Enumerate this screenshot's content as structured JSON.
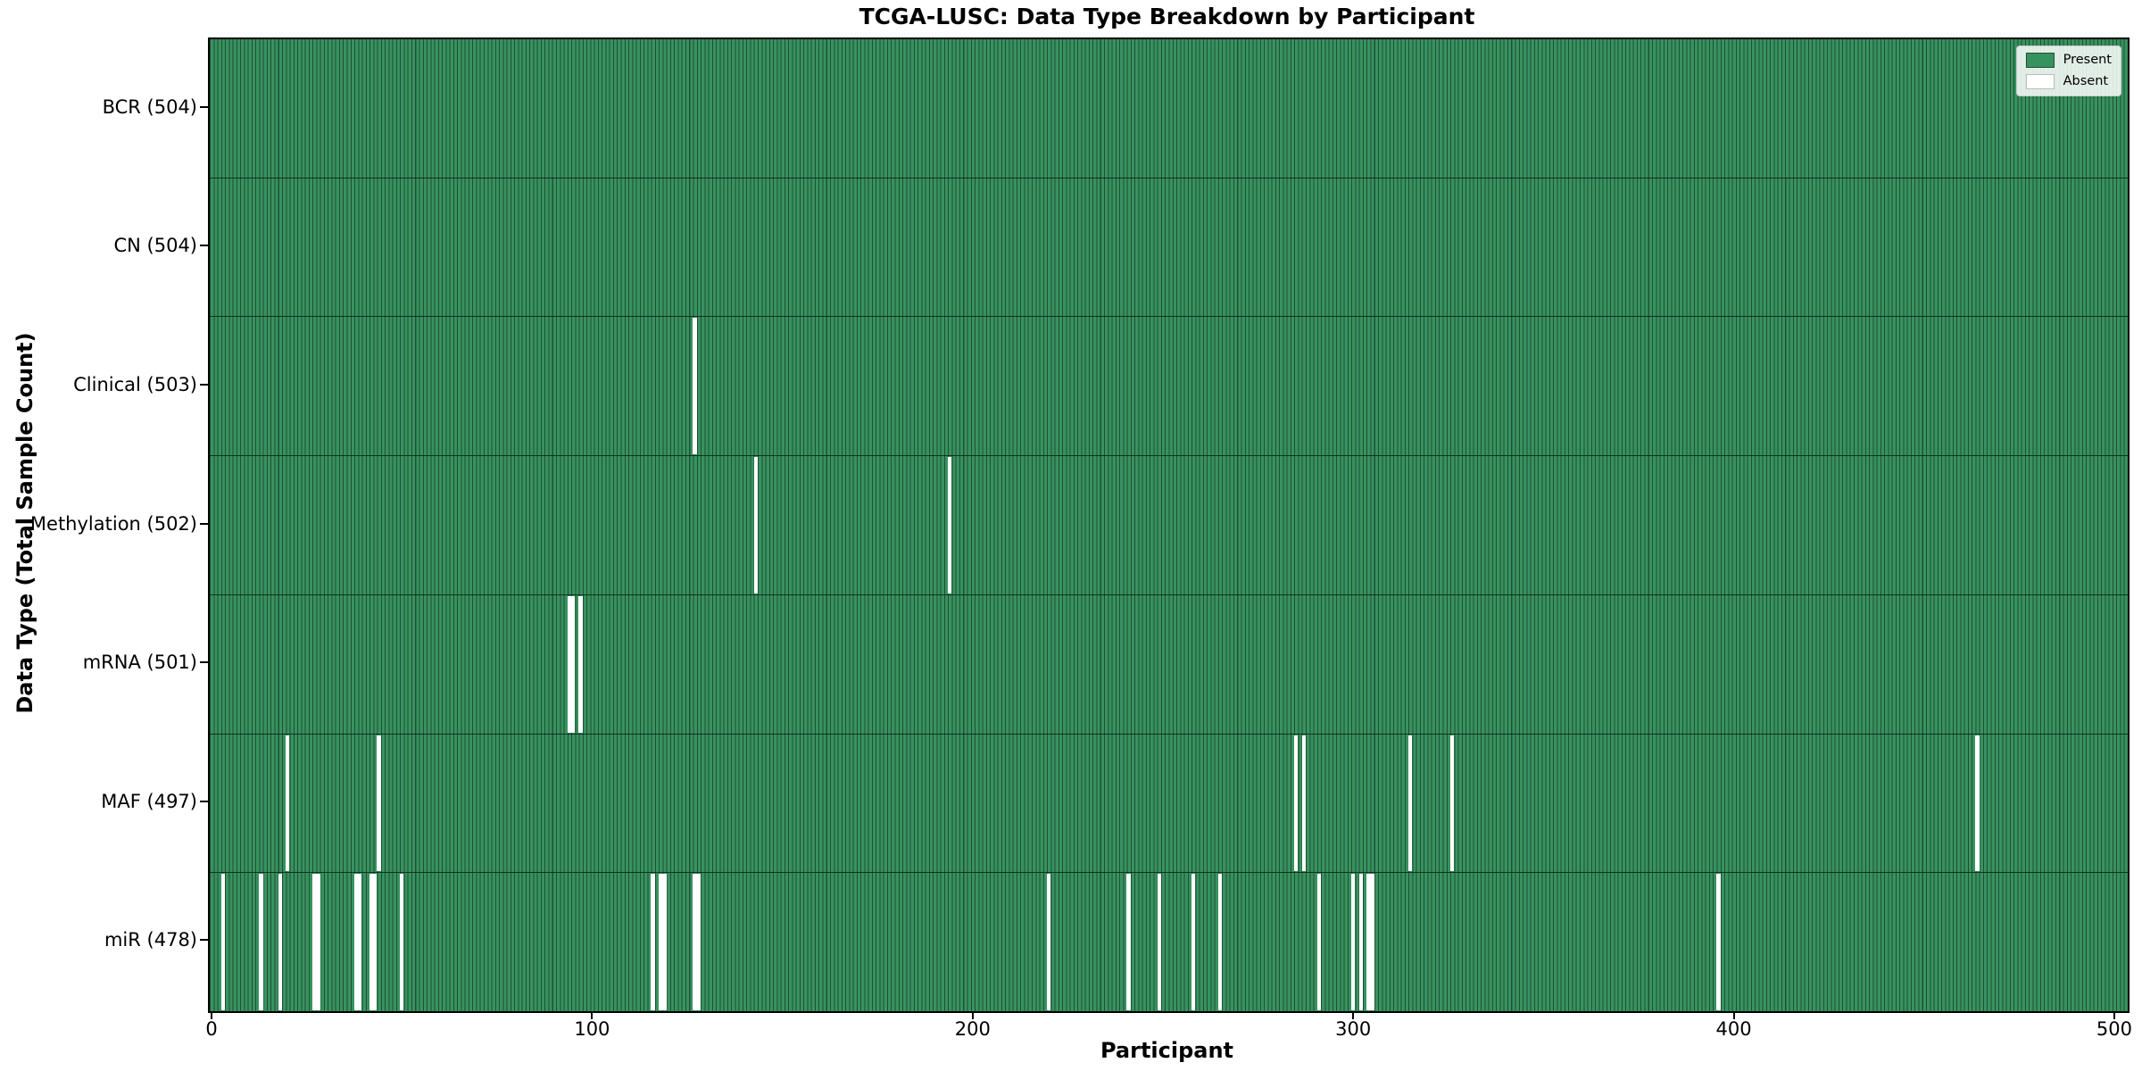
{
  "title": "TCGA-LUSC: Data Type Breakdown by Participant",
  "legend": {
    "present_label": "Present",
    "absent_label": "Absent",
    "position": "upper right"
  },
  "chart_data": {
    "type": "heatmap",
    "title": "TCGA-LUSC: Data Type Breakdown by Participant",
    "xlabel": "Participant",
    "ylabel": "Data Type (Total Sample Count)",
    "x_ticks": [
      0,
      100,
      200,
      300,
      400,
      500
    ],
    "xlim": [
      -0.5,
      503.5
    ],
    "n_participants": 504,
    "grid": false,
    "legend_entries": [
      "Present",
      "Absent"
    ],
    "colors": {
      "present": "#38925f",
      "bar_edge": "#1e5034",
      "absent": "#ffffff",
      "row_divider": "#0a2316",
      "legend_bg": "rgba(255,255,255,0.85)",
      "legend_border": "#cccccc",
      "absent_swatch_border": "#bbbbbb"
    },
    "rows": [
      {
        "label": "BCR (504)",
        "data_type": "BCR",
        "total": 504,
        "absent_participants": []
      },
      {
        "label": "CN (504)",
        "data_type": "CN",
        "total": 504,
        "absent_participants": []
      },
      {
        "label": "Clinical (503)",
        "data_type": "Clinical",
        "total": 503,
        "absent_participants": [
          127
        ]
      },
      {
        "label": "Methylation (502)",
        "data_type": "Methylation",
        "total": 502,
        "absent_participants": [
          143,
          194
        ]
      },
      {
        "label": "mRNA (501)",
        "data_type": "mRNA",
        "total": 501,
        "absent_participants": [
          94,
          95,
          97
        ]
      },
      {
        "label": "MAF (497)",
        "data_type": "MAF",
        "total": 497,
        "absent_participants": [
          20,
          44,
          285,
          287,
          315,
          326,
          464
        ]
      },
      {
        "label": "miR (478)",
        "data_type": "miR",
        "total": 478,
        "absent_participants": [
          3,
          13,
          18,
          27,
          28,
          38,
          39,
          42,
          43,
          50,
          116,
          118,
          119,
          127,
          128,
          220,
          241,
          249,
          258,
          265,
          291,
          300,
          302,
          304,
          305,
          396
        ]
      }
    ]
  }
}
